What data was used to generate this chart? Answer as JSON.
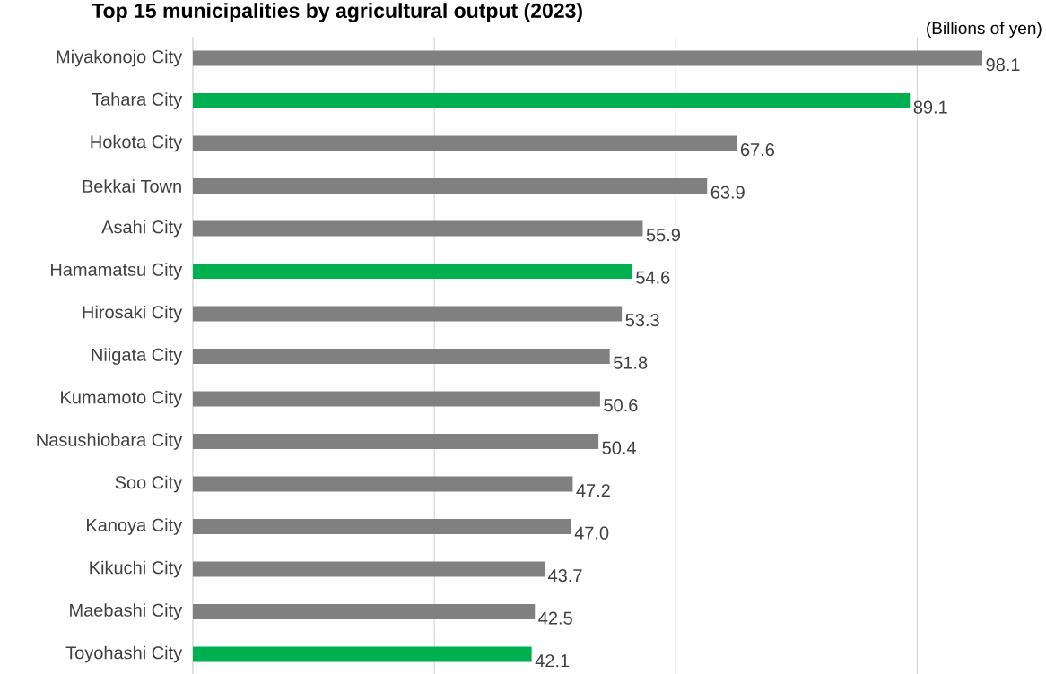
{
  "chart_data": {
    "type": "bar",
    "orientation": "horizontal",
    "title": "Top 15 municipalities by agricultural output (2023)",
    "annotations": [
      "(Billions of yen)"
    ],
    "categories": [
      "Miyakonojo City",
      "Tahara City",
      "Hokota City",
      "Bekkai Town",
      "Asahi City",
      "Hamamatsu City",
      "Hirosaki City",
      "Niigata City",
      "Kumamoto City",
      "Nasushiobara City",
      "Soo City",
      "Kanoya City",
      "Kikuchi City",
      "Maebashi City",
      "Toyohashi City"
    ],
    "values": [
      98.1,
      89.1,
      67.6,
      63.9,
      55.9,
      54.6,
      53.3,
      51.8,
      50.6,
      50.4,
      47.2,
      47.0,
      43.7,
      42.5,
      42.1
    ],
    "colors": [
      "#808080",
      "#00b050",
      "#808080",
      "#808080",
      "#808080",
      "#00b050",
      "#808080",
      "#808080",
      "#808080",
      "#808080",
      "#808080",
      "#808080",
      "#808080",
      "#808080",
      "#00b050"
    ],
    "xticks": [
      {
        "value": 30,
        "label": null
      },
      {
        "value": 60,
        "label": null
      },
      {
        "value": 90,
        "label": null
      }
    ],
    "value_labels": [
      "98.1",
      "89.1",
      "67.6",
      "63.9",
      "55.9",
      "54.6",
      "53.3",
      "51.8",
      "50.6",
      "50.4",
      "47.2",
      "47.0",
      "43.7",
      "42.5",
      "42.1"
    ],
    "grid": "x",
    "tick_labels": "y"
  }
}
